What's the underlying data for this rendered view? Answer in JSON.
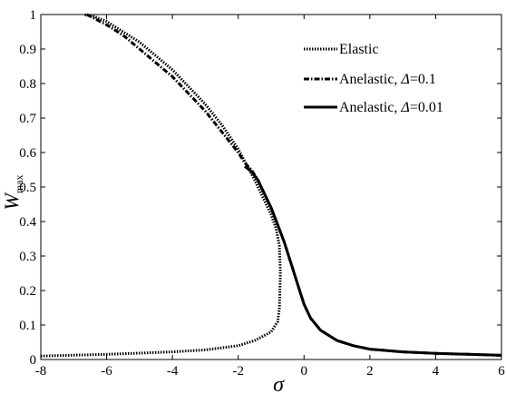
{
  "chart_data": {
    "type": "line",
    "xlabel": "σ",
    "ylabel": {
      "main": "W",
      "subscript": "max"
    },
    "xlim": [
      -8,
      6
    ],
    "ylim": [
      0,
      1
    ],
    "xticks": [
      "-8",
      "-6",
      "-4",
      "-2",
      "0",
      "2",
      "4",
      "6"
    ],
    "yticks": [
      "0",
      "0.1",
      "0.2",
      "0.3",
      "0.4",
      "0.5",
      "0.6",
      "0.7",
      "0.8",
      "0.9",
      "1"
    ],
    "grid": false,
    "legend_position": "top-right",
    "legend": [
      {
        "prefix": "Elastic",
        "symbol": "",
        "suffix": ""
      },
      {
        "prefix": "Anelastic, ",
        "symbol": "Δ",
        "suffix": "=0.1"
      },
      {
        "prefix": "Anelastic, ",
        "symbol": "Δ",
        "suffix": "=0.01"
      }
    ],
    "series": [
      {
        "style": "dotted",
        "color": "#000000",
        "x": [
          -8,
          -6,
          -4,
          -3,
          -2,
          -1.5,
          -1.0,
          -0.8,
          -0.75,
          -0.72,
          -0.75,
          -0.85,
          -1.0,
          -1.5,
          -2.0,
          -2.5,
          -3.0,
          -3.5,
          -4.0,
          -4.5,
          -5.0,
          -5.5,
          -6.0,
          -6.4,
          -6.7
        ],
        "y": [
          0.01,
          0.015,
          0.022,
          0.028,
          0.04,
          0.055,
          0.08,
          0.11,
          0.15,
          0.25,
          0.33,
          0.38,
          0.42,
          0.52,
          0.61,
          0.68,
          0.74,
          0.79,
          0.84,
          0.88,
          0.92,
          0.95,
          0.98,
          0.995,
          1.0
        ]
      },
      {
        "style": "dash-dot",
        "color": "#000000",
        "x": [
          -6.6,
          -6.0,
          -5.5,
          -5.0,
          -4.5,
          -4.0,
          -3.5,
          -3.0,
          -2.5,
          -2.0,
          -1.8,
          -1.6,
          -1.4,
          -1.2,
          -1.0,
          -0.8,
          -0.6,
          -0.4,
          -0.2,
          0.0,
          0.2,
          0.5,
          1.0,
          1.5,
          2.0,
          3.0,
          4.0,
          5.0,
          6.0
        ],
        "y": [
          1.0,
          0.97,
          0.94,
          0.9,
          0.86,
          0.82,
          0.77,
          0.72,
          0.66,
          0.6,
          0.57,
          0.55,
          0.52,
          0.48,
          0.44,
          0.39,
          0.34,
          0.28,
          0.22,
          0.16,
          0.12,
          0.085,
          0.055,
          0.04,
          0.03,
          0.022,
          0.018,
          0.015,
          0.012
        ]
      },
      {
        "style": "solid",
        "color": "#000000",
        "x": [
          -1.8,
          -1.6,
          -1.4,
          -1.2,
          -1.0,
          -0.8,
          -0.6,
          -0.4,
          -0.2,
          0.0,
          0.2,
          0.5,
          1.0,
          1.5,
          2.0,
          3.0,
          4.0,
          5.0,
          6.0
        ],
        "y": [
          0.56,
          0.545,
          0.52,
          0.48,
          0.44,
          0.39,
          0.34,
          0.28,
          0.22,
          0.16,
          0.12,
          0.085,
          0.055,
          0.04,
          0.03,
          0.022,
          0.018,
          0.015,
          0.012
        ]
      }
    ]
  }
}
